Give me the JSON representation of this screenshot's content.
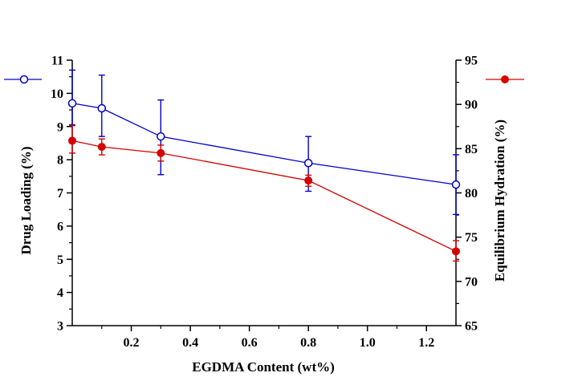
{
  "chart_data": {
    "type": "line",
    "title": "",
    "xlabel": "EGDMA Content (wt%)",
    "ylabel_left": "Drug Loading (%)",
    "ylabel_right": "Equilibrium Hydration (%)",
    "xlim": [
      0,
      1.3
    ],
    "ylim_left": [
      3,
      11
    ],
    "ylim_right": [
      65,
      95
    ],
    "grid": false,
    "x": [
      0,
      0.1,
      0.3,
      0.8,
      1.3
    ],
    "series": [
      {
        "name": "drug-loading",
        "axis": "left",
        "color": "#0000c8",
        "marker": "open-circle",
        "values": [
          9.7,
          9.55,
          8.7,
          7.9,
          7.25
        ],
        "err_up": [
          1.0,
          1.0,
          1.1,
          0.8,
          0.9
        ],
        "err_down": [
          0.65,
          0.85,
          1.15,
          0.85,
          0.9
        ]
      },
      {
        "name": "equilibrium-hydration",
        "axis": "right",
        "color": "#d40000",
        "marker": "filled-circle",
        "values": [
          85.9,
          85.2,
          84.5,
          81.4,
          73.4
        ],
        "err_up": [
          1.7,
          0.9,
          0.9,
          0.6,
          1.2
        ],
        "err_down": [
          1.4,
          0.9,
          0.9,
          0.65,
          1.1
        ]
      }
    ],
    "x_major_ticks": [
      0.2,
      0.4,
      0.6,
      0.8,
      1.0,
      1.2
    ],
    "x_tick_labels": [
      "0.2",
      "0.4",
      "0.6",
      "0.8",
      "1.0",
      "1.2"
    ],
    "x_minor_step": 0.1,
    "left_major_ticks": [
      3,
      4,
      5,
      6,
      7,
      8,
      9,
      10,
      11
    ],
    "left_tick_labels": [
      "3",
      "4",
      "5",
      "6",
      "7",
      "8",
      "9",
      "10",
      "11"
    ],
    "left_minor_step": 0.5,
    "right_major_ticks": [
      65,
      70,
      75,
      80,
      85,
      90,
      95
    ],
    "right_tick_labels": [
      "65",
      "70",
      "75",
      "80",
      "85",
      "90",
      "95"
    ],
    "right_minor_step": 2.5,
    "legend": {
      "position": "marker-samples-top-corners",
      "left_sample_series": "drug-loading",
      "right_sample_series": "equilibrium-hydration"
    }
  },
  "colors": {
    "axis": "#000000",
    "background": "#ffffff",
    "series_blue": "#0000c8",
    "series_red": "#d40000"
  }
}
